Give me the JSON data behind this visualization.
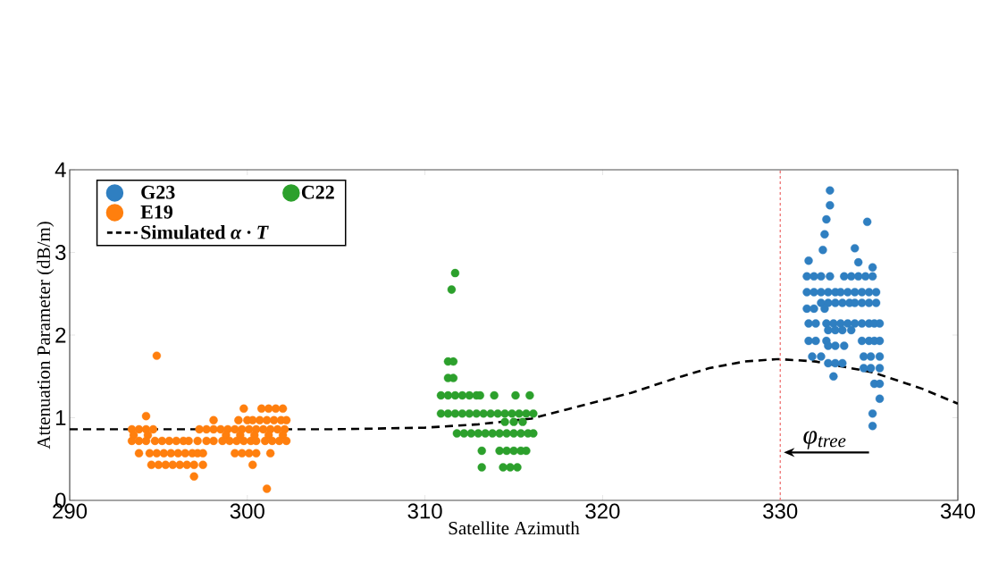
{
  "chart_data": {
    "type": "scatter",
    "xlabel": "Satellite Azimuth",
    "ylabel": "Attenuation Parameter (dB/m)",
    "xlim": [
      290,
      340
    ],
    "ylim": [
      0,
      4
    ],
    "xticks": [
      290,
      300,
      310,
      320,
      330,
      340
    ],
    "yticks": [
      0,
      1,
      2,
      3,
      4
    ],
    "legend": "top left",
    "series": [
      {
        "name": "G23",
        "marker": "circle",
        "color": "#2f7fc1",
        "x": [
          332.8,
          332.8,
          332.6,
          334.9,
          332.5,
          334.2,
          332.4,
          331.6,
          334.4,
          335.2,
          331.5,
          331.9,
          332.3,
          332.8,
          333.6,
          334.0,
          334.4,
          334.8,
          335.2,
          331.5,
          331.9,
          332.3,
          332.7,
          333.1,
          333.4,
          333.8,
          334.2,
          334.6,
          335.0,
          335.4,
          332.3,
          332.7,
          333.1,
          333.5,
          333.9,
          334.2,
          334.6,
          335.0,
          335.4,
          331.5,
          331.9,
          332.5,
          331.6,
          332.0,
          332.6,
          333.0,
          333.4,
          333.8,
          334.2,
          334.6,
          335.0,
          335.3,
          335.6,
          332.7,
          333.1,
          333.5,
          334.0,
          331.6,
          332.0,
          332.6,
          334.6,
          335.0,
          335.3,
          335.6,
          332.7,
          333.1,
          333.6,
          331.8,
          332.3,
          334.7,
          335.1,
          335.6,
          332.7,
          333.1,
          333.5,
          334.7,
          335.1,
          335.6,
          333.0,
          335.3,
          335.6,
          335.6,
          335.2,
          335.2
        ],
        "values": [
          3.75,
          3.57,
          3.4,
          3.37,
          3.22,
          3.05,
          3.03,
          2.9,
          2.88,
          2.82,
          2.71,
          2.71,
          2.71,
          2.71,
          2.71,
          2.71,
          2.71,
          2.71,
          2.71,
          2.52,
          2.52,
          2.52,
          2.52,
          2.52,
          2.52,
          2.52,
          2.52,
          2.52,
          2.52,
          2.52,
          2.39,
          2.39,
          2.39,
          2.39,
          2.39,
          2.39,
          2.39,
          2.39,
          2.39,
          2.32,
          2.32,
          2.32,
          2.14,
          2.14,
          2.14,
          2.14,
          2.14,
          2.14,
          2.14,
          2.14,
          2.14,
          2.14,
          2.14,
          2.06,
          2.06,
          2.06,
          2.06,
          1.93,
          1.93,
          1.93,
          1.93,
          1.93,
          1.93,
          1.93,
          1.87,
          1.87,
          1.87,
          1.74,
          1.74,
          1.74,
          1.74,
          1.74,
          1.66,
          1.66,
          1.66,
          1.6,
          1.6,
          1.6,
          1.5,
          1.41,
          1.41,
          1.23,
          1.05,
          0.9
        ]
      },
      {
        "name": "C22",
        "marker": "circle",
        "color": "#2ca02c",
        "x": [
          311.7,
          311.5,
          311.3,
          311.6,
          311.3,
          311.6,
          310.9,
          311.3,
          311.7,
          312.1,
          312.5,
          312.9,
          313.1,
          313.9,
          315.1,
          315.9,
          310.9,
          311.3,
          311.7,
          312.1,
          312.5,
          312.9,
          313.3,
          313.7,
          314.1,
          314.5,
          314.9,
          315.3,
          315.7,
          316.1,
          314.5,
          315.0,
          315.5,
          311.8,
          312.2,
          312.6,
          313.0,
          313.4,
          313.8,
          314.2,
          314.6,
          315.0,
          315.4,
          315.8,
          316.1,
          313.2,
          314.2,
          314.6,
          315.0,
          315.4,
          315.7,
          313.2,
          314.4,
          314.8,
          315.2
        ],
        "values": [
          2.75,
          2.55,
          1.68,
          1.68,
          1.48,
          1.48,
          1.27,
          1.27,
          1.27,
          1.27,
          1.27,
          1.27,
          1.27,
          1.27,
          1.27,
          1.27,
          1.05,
          1.05,
          1.05,
          1.05,
          1.05,
          1.05,
          1.05,
          1.05,
          1.05,
          1.05,
          1.05,
          1.05,
          1.05,
          1.05,
          0.95,
          0.95,
          0.95,
          0.81,
          0.81,
          0.81,
          0.81,
          0.81,
          0.81,
          0.81,
          0.81,
          0.81,
          0.81,
          0.81,
          0.81,
          0.6,
          0.6,
          0.6,
          0.6,
          0.6,
          0.6,
          0.4,
          0.4,
          0.4,
          0.4
        ]
      },
      {
        "name": "E19",
        "marker": "circle",
        "color": "#ff7f0e",
        "x": [
          294.9,
          294.3,
          299.8,
          300.8,
          301.2,
          301.6,
          302.0,
          298.1,
          299.5,
          300.0,
          300.3,
          300.7,
          301.1,
          301.5,
          301.9,
          302.2,
          293.5,
          293.9,
          294.3,
          294.7,
          297.3,
          297.7,
          298.1,
          298.5,
          298.9,
          299.3,
          299.7,
          300.1,
          300.5,
          300.9,
          301.3,
          301.7,
          302.1,
          293.6,
          294.4,
          298.8,
          299.6,
          300.4,
          301.2,
          302.0,
          293.5,
          293.9,
          294.3,
          294.8,
          295.2,
          295.6,
          296.0,
          296.4,
          296.7,
          297.2,
          297.7,
          298.1,
          298.6,
          299.0,
          299.4,
          299.8,
          300.2,
          300.5,
          301.0,
          301.4,
          301.8,
          302.2,
          293.9,
          294.5,
          294.9,
          295.3,
          295.7,
          296.1,
          296.5,
          296.9,
          297.2,
          297.5,
          299.3,
          299.7,
          300.1,
          300.5,
          301.3,
          294.6,
          295.0,
          295.4,
          295.8,
          296.2,
          296.6,
          297.0,
          297.5,
          300.3,
          297.0,
          301.1
        ],
        "values": [
          1.75,
          1.02,
          1.11,
          1.11,
          1.11,
          1.11,
          1.11,
          0.97,
          0.97,
          0.97,
          0.97,
          0.97,
          0.97,
          0.97,
          0.97,
          0.97,
          0.86,
          0.86,
          0.86,
          0.86,
          0.86,
          0.86,
          0.86,
          0.86,
          0.86,
          0.86,
          0.86,
          0.86,
          0.86,
          0.86,
          0.86,
          0.86,
          0.86,
          0.79,
          0.79,
          0.79,
          0.79,
          0.79,
          0.79,
          0.79,
          0.72,
          0.72,
          0.72,
          0.72,
          0.72,
          0.72,
          0.72,
          0.72,
          0.72,
          0.72,
          0.72,
          0.72,
          0.72,
          0.72,
          0.72,
          0.72,
          0.72,
          0.72,
          0.72,
          0.72,
          0.72,
          0.72,
          0.57,
          0.57,
          0.57,
          0.57,
          0.57,
          0.57,
          0.57,
          0.57,
          0.57,
          0.57,
          0.57,
          0.57,
          0.57,
          0.57,
          0.57,
          0.43,
          0.43,
          0.43,
          0.43,
          0.43,
          0.43,
          0.43,
          0.43,
          0.43,
          0.29,
          0.14
        ]
      },
      {
        "name": "Simulated *α · T*",
        "type": "line",
        "line_style": "dashed",
        "marker": "none",
        "color": "#000000",
        "x": [
          290,
          295,
          305,
          310,
          313,
          316,
          318,
          321.6,
          324,
          326,
          328,
          329.9,
          332,
          335.2,
          338,
          340
        ],
        "values": [
          0.86,
          0.86,
          0.86,
          0.88,
          0.92,
          0.99,
          1.1,
          1.3,
          1.47,
          1.6,
          1.68,
          1.71,
          1.68,
          1.55,
          1.35,
          1.17
        ]
      }
    ],
    "ref_lines": [
      {
        "axis": "x",
        "value": 330,
        "color": "#f08080",
        "line_style": "dotted"
      }
    ],
    "annotations": [
      {
        "text": "φ$_{tree}$",
        "x": 330,
        "y": 0.58
      }
    ]
  }
}
